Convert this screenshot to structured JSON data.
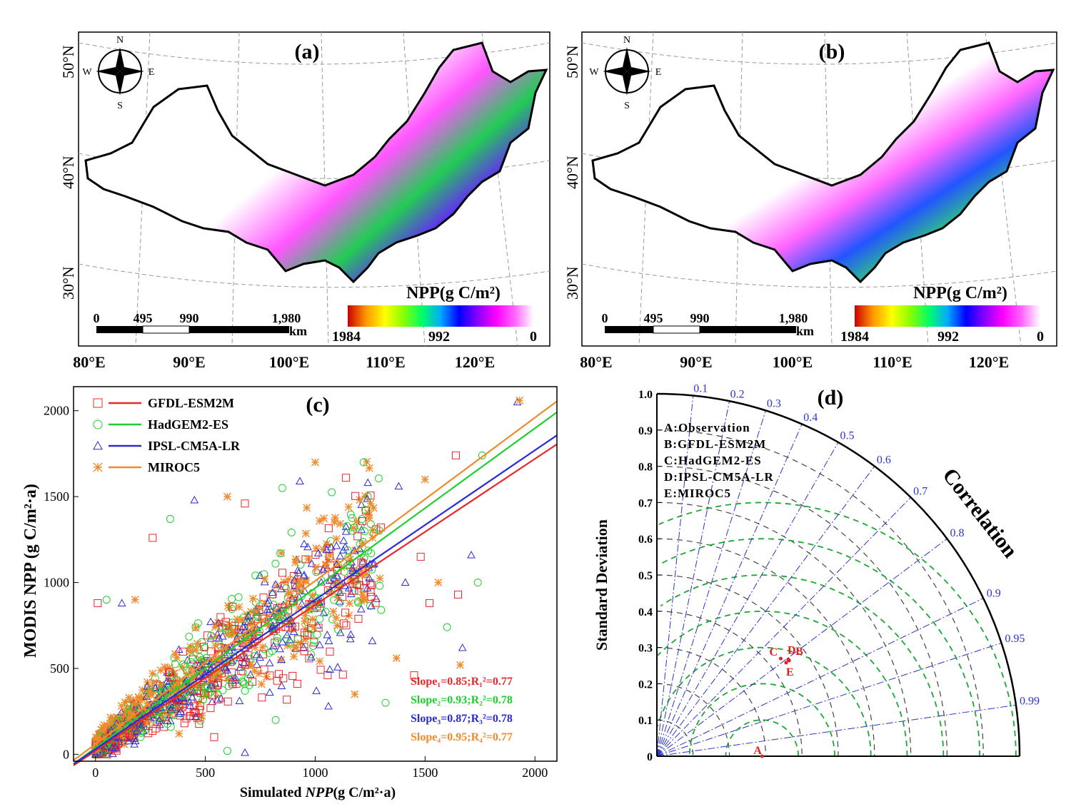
{
  "maps": [
    {
      "label": "(a)",
      "compass": {
        "n": "N",
        "s": "S",
        "e": "E",
        "w": "W"
      },
      "lat_labels": [
        "50°N",
        "40°N",
        "30°N"
      ],
      "lon_labels": [
        "80°E",
        "90°E",
        "100°E",
        "110°E",
        "120°E"
      ],
      "scale_ticks": [
        "0",
        "495",
        "990",
        "1,980"
      ],
      "scale_unit": "km",
      "legend_title": "NPP(g C/m²)",
      "legend_ticks": [
        "1984",
        "992",
        "0"
      ],
      "colors": [
        "#ffffff",
        "#ff66ff",
        "#ff00ff",
        "#8800ff",
        "#0000ff",
        "#00aaff",
        "#00ff66",
        "#88ff00",
        "#ffff00",
        "#ff9900",
        "#cc0000"
      ]
    },
    {
      "label": "(b)",
      "compass": {
        "n": "N",
        "s": "S",
        "e": "E",
        "w": "W"
      },
      "lat_labels": [
        "50°N",
        "40°N",
        "30°N"
      ],
      "lon_labels": [
        "80°E",
        "90°E",
        "100°E",
        "110°E",
        "120°E"
      ],
      "scale_ticks": [
        "0",
        "495",
        "990",
        "1,980"
      ],
      "scale_unit": "km",
      "legend_title": "NPP(g C/m²)",
      "legend_ticks": [
        "1984",
        "992",
        "0"
      ],
      "colors": [
        "#ffffff",
        "#ff66ff",
        "#ff00ff",
        "#8800ff",
        "#0000ff",
        "#00aaff",
        "#00ff66",
        "#88ff00",
        "#ffff00",
        "#ff9900",
        "#cc0000"
      ]
    }
  ],
  "chart_data": [
    {
      "type": "scatter",
      "label": "(c)",
      "xlabel_pre": "Simulated ",
      "xlabel_em": "NPP",
      "xlabel_post": "(g C/m²·a)",
      "ylabel": "MODIS NPP (g C/m²·a)",
      "xlim": [
        -100,
        2100
      ],
      "ylim": [
        -40,
        2140
      ],
      "xticks": [
        0,
        500,
        1000,
        1500,
        2000
      ],
      "yticks": [
        0,
        500,
        1000,
        1500,
        2000
      ],
      "series": [
        {
          "name": "GFDL-ESM2M",
          "color": "#e8282a",
          "marker": "square",
          "slope": 0.85,
          "intercept": 20,
          "annotation": "Slope₁=0.85;R₁²=0.77"
        },
        {
          "name": "HadGEM2-ES",
          "color": "#1fcf2f",
          "marker": "circle",
          "slope": 0.93,
          "intercept": 38,
          "annotation": "Slope₂=0.93;R₂²=0.78"
        },
        {
          "name": "IPSL-CM5A-LR",
          "color": "#2a2ad8",
          "marker": "triangle",
          "slope": 0.87,
          "intercept": 30,
          "annotation": "Slope₃=0.87;R₃²=0.78"
        },
        {
          "name": "MIROC5",
          "color": "#f08a2a",
          "marker": "star",
          "slope": 0.95,
          "intercept": 60,
          "annotation": "Slope₄=0.95;R₄²=0.77"
        }
      ],
      "outliers": [
        [
          10,
          880
        ],
        [
          50,
          900
        ],
        [
          120,
          880
        ],
        [
          180,
          900
        ],
        [
          260,
          1260
        ],
        [
          340,
          1370
        ],
        [
          450,
          1480
        ],
        [
          600,
          1500
        ],
        [
          680,
          1460
        ],
        [
          850,
          1550
        ],
        [
          930,
          1590
        ],
        [
          1000,
          1700
        ],
        [
          1140,
          1610
        ],
        [
          1220,
          1700
        ],
        [
          1380,
          1560
        ],
        [
          1500,
          1600
        ],
        [
          1640,
          1740
        ],
        [
          1760,
          1740
        ],
        [
          1920,
          2050
        ],
        [
          1930,
          2060
        ],
        [
          1650,
          930
        ],
        [
          1600,
          740
        ],
        [
          1670,
          620
        ],
        [
          1660,
          520
        ],
        [
          1450,
          460
        ],
        [
          1320,
          300
        ],
        [
          1060,
          280
        ],
        [
          1180,
          350
        ],
        [
          540,
          100
        ],
        [
          600,
          20
        ],
        [
          680,
          10
        ],
        [
          380,
          120
        ],
        [
          560,
          320
        ],
        [
          820,
          200
        ],
        [
          1260,
          660
        ],
        [
          1370,
          560
        ],
        [
          1520,
          880
        ],
        [
          1740,
          1000
        ],
        [
          1710,
          1160
        ],
        [
          1560,
          1000
        ],
        [
          1480,
          1150
        ],
        [
          1300,
          840
        ],
        [
          1410,
          1000
        ],
        [
          1100,
          750
        ],
        [
          950,
          600
        ]
      ]
    },
    {
      "type": "taylor",
      "label": "(d)",
      "ylabel": "Standard Deviation",
      "arc_label": "Correlation",
      "std_max": 1.0,
      "std_ticks": [
        "0",
        "0.1",
        "0.2",
        "0.3",
        "0.4",
        "0.5",
        "0.6",
        "0.7",
        "0.8",
        "0.9",
        "1.0"
      ],
      "corr_ticks": [
        0.1,
        0.2,
        0.3,
        0.4,
        0.5,
        0.6,
        0.7,
        0.8,
        0.9,
        0.95,
        0.99
      ],
      "corr_labels": [
        "0.1",
        "0.2",
        "0.3",
        "0.4",
        "0.5",
        "0.6",
        "0.7",
        "0.8",
        "0.9",
        "0.95",
        "0.99"
      ],
      "legend": [
        "A:Observation",
        "B:GFDL-ESM2M",
        "C:HadGEM2-ES",
        "D:IPSL-CM5A-LR",
        "E:MIROC5"
      ],
      "points": [
        {
          "id": "A",
          "std": 0.29,
          "corr": 1.0
        },
        {
          "id": "B",
          "std": 0.45,
          "corr": 0.81
        },
        {
          "id": "C",
          "std": 0.435,
          "corr": 0.785
        },
        {
          "id": "D",
          "std": 0.45,
          "corr": 0.805
        },
        {
          "id": "E",
          "std": 0.44,
          "corr": 0.81
        }
      ]
    }
  ]
}
